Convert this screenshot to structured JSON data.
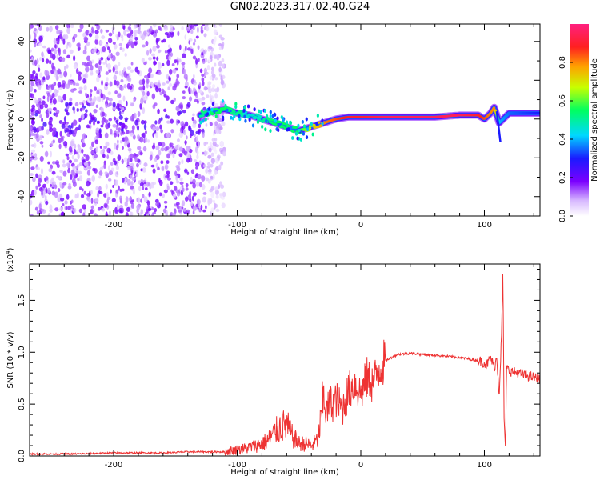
{
  "title": "GN02.2023.317.02.40.G24",
  "chart_data": [
    {
      "type": "heatmap",
      "xlabel": "Height of straight line (km)",
      "ylabel": "Frequency (Hz)",
      "xlim": [
        -268,
        145
      ],
      "ylim": [
        -50,
        49
      ],
      "xticks": [
        -200,
        -100,
        0,
        100
      ],
      "xtick_labels": [
        "-200",
        "-100",
        "0",
        "100"
      ],
      "yticks": [
        -40,
        -20,
        0,
        20,
        40
      ],
      "ytick_labels": [
        "-40",
        "-20",
        "0",
        "20",
        "40"
      ],
      "colorbar": {
        "label": "Normalized spectral amplitude",
        "range": [
          0,
          1
        ],
        "ticks": [
          0.0,
          0.2,
          0.4,
          0.6,
          0.8
        ],
        "tick_labels": [
          "0.0",
          "0.2",
          "0.4",
          "0.6",
          "0.8"
        ]
      },
      "ridge": {
        "x": [
          -130,
          -120,
          -110,
          -100,
          -90,
          -80,
          -70,
          -60,
          -50,
          -40,
          -30,
          -20,
          -10,
          0,
          20,
          40,
          60,
          80,
          95,
          100,
          105,
          108,
          112,
          120,
          145
        ],
        "freq": [
          2,
          4,
          5,
          3,
          2,
          0,
          -2,
          -4,
          -6,
          -4,
          -2,
          0,
          1,
          1,
          1,
          1,
          1,
          2,
          2,
          0,
          3,
          6,
          -2,
          3,
          3
        ],
        "peak_amplitude": [
          0.5,
          0.55,
          0.55,
          0.5,
          0.45,
          0.5,
          0.55,
          0.55,
          0.55,
          0.7,
          0.8,
          0.85,
          0.9,
          0.9,
          0.95,
          0.95,
          0.95,
          0.95,
          0.9,
          0.85,
          0.8,
          0.8,
          0.4,
          0.35,
          0.3
        ]
      }
    },
    {
      "type": "line",
      "xlabel": "Height of straight line (km)",
      "ylabel": "SNR (10 * v/v)",
      "y_multiplier_label": "(x10",
      "y_multiplier_exp": "4",
      "y_multiplier_close": ")",
      "xlim": [
        -268,
        145
      ],
      "ylim": [
        0,
        1.85
      ],
      "xticks": [
        -200,
        -100,
        0,
        100
      ],
      "xtick_labels": [
        "-200",
        "-100",
        "0",
        "100"
      ],
      "yticks": [
        0.0,
        0.5,
        1.0,
        1.5
      ],
      "ytick_labels": [
        "0.0",
        "0.5",
        "1.0",
        "1.5"
      ],
      "series": [
        {
          "color": "#ee3333",
          "x": [
            -268,
            -250,
            -230,
            -200,
            -180,
            -160,
            -140,
            -120,
            -110,
            -100,
            -90,
            -80,
            -75,
            -70,
            -65,
            -60,
            -55,
            -50,
            -45,
            -40,
            -35,
            -32,
            -30,
            -28,
            -25,
            -22,
            -20,
            -15,
            -10,
            -5,
            0,
            5,
            10,
            15,
            20,
            25,
            30,
            40,
            50,
            60,
            70,
            80,
            90,
            95,
            100,
            102,
            105,
            108,
            110,
            112,
            114,
            115,
            116,
            117,
            118,
            120,
            130,
            145
          ],
          "y": [
            0.02,
            0.02,
            0.02,
            0.03,
            0.03,
            0.03,
            0.04,
            0.04,
            0.04,
            0.06,
            0.08,
            0.12,
            0.15,
            0.22,
            0.28,
            0.3,
            0.18,
            0.12,
            0.12,
            0.1,
            0.15,
            0.35,
            0.6,
            0.4,
            0.52,
            0.5,
            0.55,
            0.45,
            0.62,
            0.7,
            0.6,
            0.75,
            0.7,
            0.85,
            0.92,
            0.95,
            0.98,
            0.99,
            0.98,
            0.97,
            0.96,
            0.95,
            0.93,
            0.92,
            0.9,
            0.88,
            0.95,
            0.85,
            0.95,
            0.6,
            1.2,
            1.8,
            0.3,
            0.05,
            0.85,
            0.82,
            0.79,
            0.74
          ]
        }
      ]
    }
  ]
}
